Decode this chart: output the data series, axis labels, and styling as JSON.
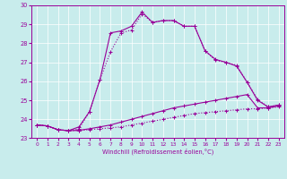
{
  "xlabel": "Windchill (Refroidissement éolien,°C)",
  "bg_color": "#c8ecec",
  "grid_color": "#ffffff",
  "line_color": "#990099",
  "xlim": [
    -0.5,
    23.5
  ],
  "ylim": [
    23,
    30
  ],
  "yticks": [
    23,
    24,
    25,
    26,
    27,
    28,
    29,
    30
  ],
  "xticks": [
    0,
    1,
    2,
    3,
    4,
    5,
    6,
    7,
    8,
    9,
    10,
    11,
    12,
    13,
    14,
    15,
    16,
    17,
    18,
    19,
    20,
    21,
    22,
    23
  ],
  "line1_x": [
    0,
    1,
    2,
    3,
    4,
    5,
    6,
    7,
    8,
    9,
    10,
    11,
    12,
    13,
    14,
    15,
    16,
    17,
    18,
    19,
    20,
    21,
    22,
    23
  ],
  "line1_y": [
    23.7,
    23.65,
    23.45,
    23.4,
    23.4,
    23.45,
    23.5,
    23.55,
    23.6,
    23.7,
    23.8,
    23.9,
    24.0,
    24.1,
    24.2,
    24.3,
    24.35,
    24.4,
    24.45,
    24.5,
    24.55,
    24.55,
    24.6,
    24.65
  ],
  "line2_x": [
    0,
    1,
    2,
    3,
    4,
    5,
    6,
    7,
    8,
    9,
    10,
    11,
    12,
    13,
    14,
    15,
    16,
    17,
    18,
    19,
    20,
    21,
    22,
    23
  ],
  "line2_y": [
    23.7,
    23.65,
    23.45,
    23.4,
    23.42,
    23.5,
    23.6,
    23.7,
    23.85,
    24.0,
    24.15,
    24.3,
    24.45,
    24.6,
    24.7,
    24.8,
    24.9,
    25.0,
    25.1,
    25.2,
    25.3,
    24.6,
    24.6,
    24.7
  ],
  "line3_x": [
    0,
    1,
    2,
    3,
    4,
    5,
    6,
    7,
    8,
    9,
    10,
    11,
    12,
    13,
    14,
    15,
    16,
    17,
    18,
    19,
    20,
    21,
    22,
    23
  ],
  "line3_y": [
    23.7,
    23.65,
    23.45,
    23.4,
    23.5,
    24.4,
    26.1,
    27.55,
    28.55,
    28.7,
    29.55,
    29.1,
    29.2,
    29.2,
    28.9,
    28.9,
    27.6,
    27.1,
    27.0,
    26.85,
    25.95,
    25.05,
    24.65,
    24.75
  ],
  "line4_x": [
    0,
    1,
    2,
    3,
    4,
    5,
    6,
    7,
    8,
    9,
    10,
    11,
    12,
    13,
    14,
    15,
    16,
    17,
    18,
    19,
    20,
    21,
    22,
    23
  ],
  "line4_y": [
    23.7,
    23.65,
    23.45,
    23.4,
    23.6,
    24.4,
    26.1,
    28.55,
    28.65,
    28.9,
    29.65,
    29.1,
    29.2,
    29.2,
    28.9,
    28.9,
    27.6,
    27.15,
    27.0,
    26.8,
    25.95,
    25.0,
    24.65,
    24.75
  ]
}
